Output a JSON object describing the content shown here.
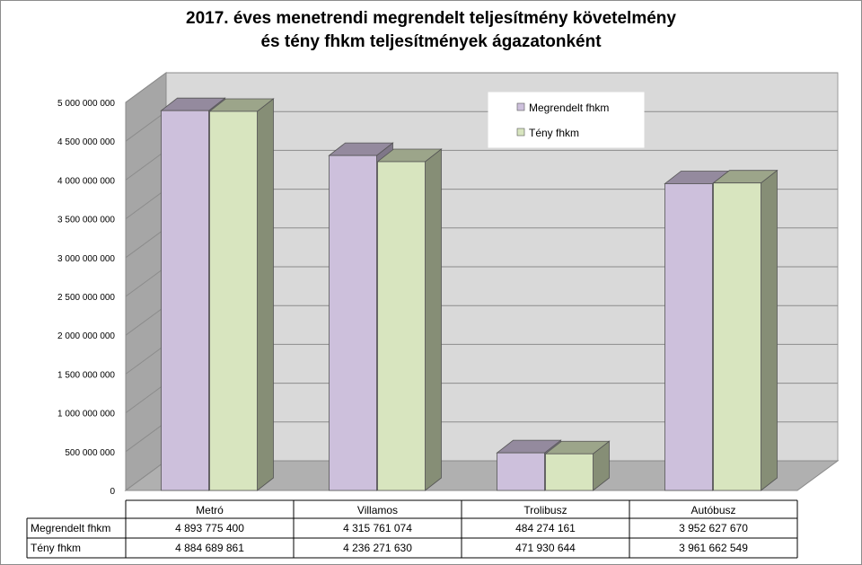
{
  "chart_data": {
    "type": "bar",
    "title_line1": "2017. éves menetrendi megrendelt teljesítmény követelmény",
    "title_line2": "és tény fhkm teljesítmények ágazatonként",
    "categories": [
      "Metró",
      "Villamos",
      "Trolibusz",
      "Autóbusz"
    ],
    "series": [
      {
        "name": "Megrendelt fhkm",
        "values": [
          4893775400,
          4315761074,
          484274161,
          3952627670
        ],
        "labels": [
          "4 893 775 400",
          "4 315 761 074",
          "484 274 161",
          "3 952 627 670"
        ],
        "color": "#cdc0dc"
      },
      {
        "name": "Tény fhkm",
        "values": [
          4884689861,
          4236271630,
          471930644,
          3961662549
        ],
        "labels": [
          "4 884 689 861",
          "4 236 271 630",
          "471 930 644",
          "3 961 662 549"
        ],
        "color": "#d8e5bf"
      }
    ],
    "ylim": [
      0,
      5000000000
    ],
    "yticks": [
      "0",
      "500 000 000",
      "1 000 000 000",
      "1 500 000 000",
      "2 000 000 000",
      "2 500 000 000",
      "3 000 000 000",
      "3 500 000 000",
      "4 000 000 000",
      "4 500 000 000",
      "5 000 000 000"
    ],
    "grid": true,
    "legend_position": "top-right",
    "style": "3d-column"
  }
}
